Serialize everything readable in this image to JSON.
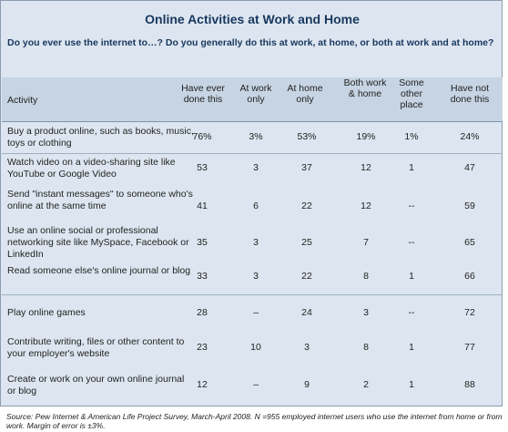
{
  "title": "Online Activities at Work and Home",
  "question": "Do you ever use the internet to…? Do you generally do this at work, at home, or both at work and at home?",
  "headers": {
    "activity": "Activity",
    "ever": "Have ever done this",
    "work": "At work only",
    "home": "At home only",
    "both": "Both work & home",
    "other": "Some other place",
    "not": "Have not done this"
  },
  "rows": [
    {
      "activity": "Buy a product online, such as books, music, toys or clothing",
      "ever": "76%",
      "work": "3%",
      "home": "53%",
      "both": "19%",
      "other": "1%",
      "not": "24%"
    },
    {
      "activity": "Watch video on a video-sharing site like YouTube or Google Video",
      "ever": "53",
      "work": "3",
      "home": "37",
      "both": "12",
      "other": "1",
      "not": "47"
    },
    {
      "activity": "Send \"instant messages\" to someone who's online at the same time",
      "ever": "41",
      "work": "6",
      "home": "22",
      "both": "12",
      "other": "--",
      "not": "59"
    },
    {
      "activity": "Use an online social or professional networking site like MySpace, Facebook or LinkedIn",
      "ever": "35",
      "work": "3",
      "home": "25",
      "both": "7",
      "other": "--",
      "not": "65"
    },
    {
      "activity": "Read someone else's online journal or blog",
      "ever": "33",
      "work": "3",
      "home": "22",
      "both": "8",
      "other": "1",
      "not": "66"
    },
    {
      "activity": "Play online games",
      "ever": "28",
      "work": "–",
      "home": "24",
      "both": "3",
      "other": "--",
      "not": "72"
    },
    {
      "activity": "Contribute writing, files or other content to your employer's website",
      "ever": "23",
      "work": "10",
      "home": "3",
      "both": "8",
      "other": "1",
      "not": "77"
    },
    {
      "activity": "Create or work on your own online journal or blog",
      "ever": "12",
      "work": "–",
      "home": "9",
      "both": "2",
      "other": "1",
      "not": "88"
    }
  ],
  "source": "Source: Pew Internet & American Life Project Survey, March-April 2008. N =955 employed internet users who use the internet from home or from work. Margin of error is ±3%."
}
